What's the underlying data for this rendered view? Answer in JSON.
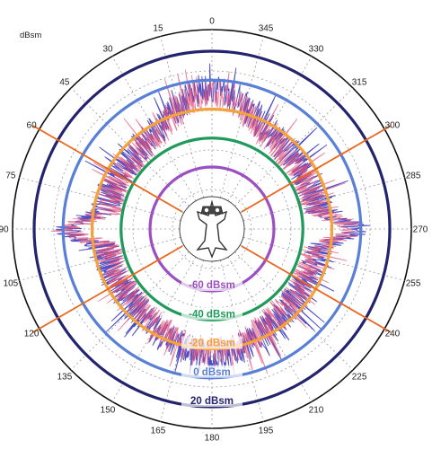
{
  "chart_data": {
    "type": "polar",
    "unit_label": "dBsm",
    "angle_ticks": [
      "0",
      "15",
      "30",
      "45",
      "60",
      "75",
      "90",
      "105",
      "120",
      "135",
      "150",
      "165",
      "180",
      "195",
      "210",
      "225",
      "240",
      "255",
      "270",
      "285",
      "300",
      "315",
      "330",
      "345"
    ],
    "angle_direction": "counterclockwise-drawn as 0 at top, 15 to left",
    "reference_rings": [
      {
        "label": "-60 dBsm",
        "value": -60,
        "color": "#9b4fc0"
      },
      {
        "label": "-40 dBsm",
        "value": -40,
        "color": "#1f9a5a"
      },
      {
        "label": "-20 dBsm",
        "value": -20,
        "color": "#f4a23b"
      },
      {
        "label": "0 dBsm",
        "value": 0,
        "color": "#5a7fd6"
      },
      {
        "label": "20 dBsm",
        "value": 20,
        "color": "#24246e"
      }
    ],
    "highlight_angles": [
      60,
      120,
      240,
      300
    ],
    "highlight_color": "#e8671c",
    "series": [
      {
        "color": "#3b3bbf"
      },
      {
        "color": "#e0507a"
      }
    ],
    "grid": true,
    "icon": "aircraft-top-view-icon"
  }
}
